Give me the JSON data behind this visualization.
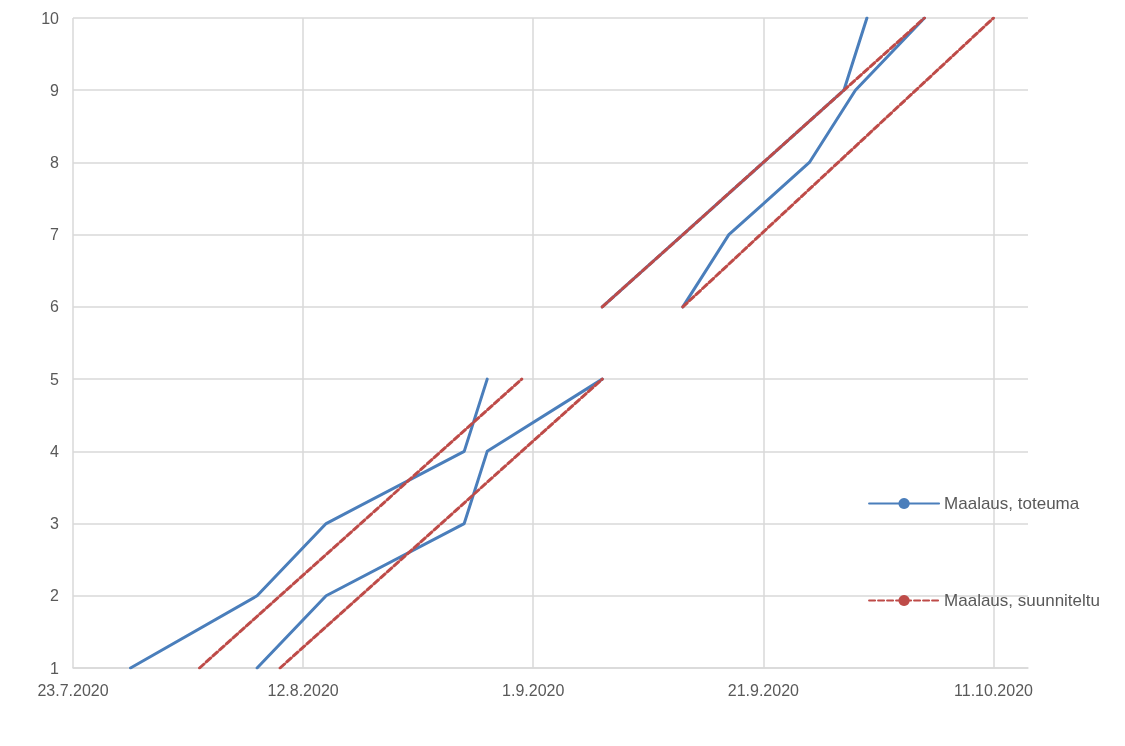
{
  "chart_data": {
    "type": "line",
    "xlim": [
      "2020-07-23",
      "2020-10-14"
    ],
    "xticks": [
      {
        "value": "2020-07-23",
        "label": "23.7.2020"
      },
      {
        "value": "2020-08-12",
        "label": "12.8.2020"
      },
      {
        "value": "2020-09-01",
        "label": "1.9.2020"
      },
      {
        "value": "2020-09-21",
        "label": "21.9.2020"
      },
      {
        "value": "2020-10-11",
        "label": "11.10.2020"
      }
    ],
    "ylim": [
      1,
      10
    ],
    "yticks": [
      1,
      2,
      3,
      4,
      5,
      6,
      7,
      8,
      9,
      10
    ],
    "grid": true,
    "legend": "right",
    "marker": "none",
    "series": [
      {
        "name": "Maalaus, toteuma",
        "color": "#4a7ebb",
        "line_style": "solid",
        "x": [
          "2020-07-28",
          "2020-08-08",
          "2020-08-14",
          "2020-08-26",
          "2020-08-28"
        ],
        "values": [
          1,
          2,
          3,
          4,
          5
        ]
      },
      {
        "color": "#4a7ebb",
        "line_style": "solid",
        "x": [
          "2020-08-08",
          "2020-08-14",
          "2020-08-26",
          "2020-08-28",
          "2020-09-07"
        ],
        "values": [
          1,
          2,
          3,
          4,
          5
        ]
      },
      {
        "color": "#4a7ebb",
        "line_style": "solid",
        "x": [
          "2020-09-07",
          "2020-09-28",
          "2020-09-30"
        ],
        "values": [
          6,
          9,
          10
        ]
      },
      {
        "color": "#4a7ebb",
        "line_style": "solid",
        "x": [
          "2020-09-14",
          "2020-09-18",
          "2020-09-25",
          "2020-09-29",
          "2020-10-05"
        ],
        "values": [
          6,
          7,
          8,
          9,
          10
        ]
      },
      {
        "name": "Maalaus, suunniteltu",
        "color": "#be4b48",
        "line_style": "dashed",
        "x": [
          "2020-08-03",
          "2020-08-31"
        ],
        "values": [
          1,
          5
        ]
      },
      {
        "color": "#be4b48",
        "line_style": "dashed",
        "x": [
          "2020-08-10",
          "2020-09-07"
        ],
        "values": [
          1,
          5
        ]
      },
      {
        "color": "#be4b48",
        "line_style": "dashed",
        "x": [
          "2020-09-07",
          "2020-10-05"
        ],
        "values": [
          6,
          10
        ]
      },
      {
        "color": "#be4b48",
        "line_style": "dashed",
        "x": [
          "2020-09-14",
          "2020-10-11"
        ],
        "values": [
          6,
          10
        ]
      }
    ]
  }
}
